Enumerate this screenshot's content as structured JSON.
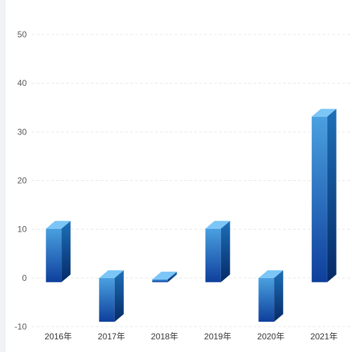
{
  "chart_data": {
    "type": "bar",
    "categories": [
      "2016年",
      "2017年",
      "2018年",
      "2019年",
      "2020年",
      "2021年"
    ],
    "series": [
      {
        "values": [
          11,
          -9,
          0,
          11,
          -9,
          34
        ]
      }
    ],
    "ylim": [
      -10,
      50
    ],
    "yticks": [
      "-10",
      "0",
      "10",
      "20",
      "30",
      "40",
      "50"
    ],
    "title": "",
    "xlabel": "",
    "ylabel": "",
    "grid": true,
    "style": "3d-cuboid",
    "colors": {
      "front_top": "#4aa0e0",
      "front_bottom": "#0e3f9c",
      "side_top": "#1d6fb8",
      "side_bottom": "#052a66",
      "top_face": "#7cc6f7",
      "grid": "#e6e8eb"
    }
  }
}
